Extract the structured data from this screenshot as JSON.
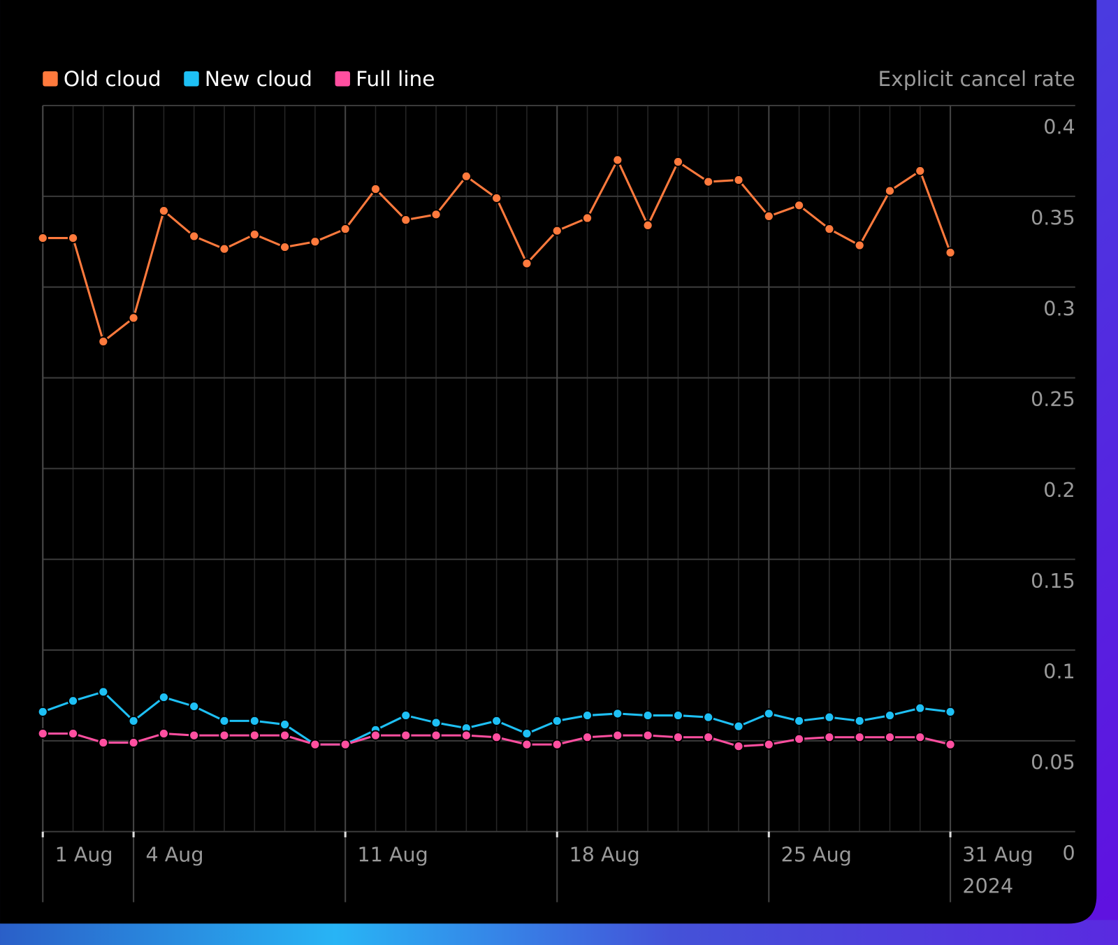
{
  "chart_data": {
    "type": "line",
    "y_axis_label": "Explicit cancel rate",
    "x": [
      "2024-08-01",
      "2024-08-02",
      "2024-08-03",
      "2024-08-04",
      "2024-08-05",
      "2024-08-06",
      "2024-08-07",
      "2024-08-08",
      "2024-08-09",
      "2024-08-10",
      "2024-08-11",
      "2024-08-12",
      "2024-08-13",
      "2024-08-14",
      "2024-08-15",
      "2024-08-16",
      "2024-08-17",
      "2024-08-18",
      "2024-08-19",
      "2024-08-20",
      "2024-08-21",
      "2024-08-22",
      "2024-08-23",
      "2024-08-24",
      "2024-08-25",
      "2024-08-26",
      "2024-08-27",
      "2024-08-28",
      "2024-08-29",
      "2024-08-30",
      "2024-08-31"
    ],
    "xticks": [
      {
        "value": "2024-08-01",
        "label": "1 Aug"
      },
      {
        "value": "2024-08-04",
        "label": "4 Aug"
      },
      {
        "value": "2024-08-11",
        "label": "11 Aug"
      },
      {
        "value": "2024-08-18",
        "label": "18 Aug"
      },
      {
        "value": "2024-08-25",
        "label": "25 Aug"
      },
      {
        "value": "2024-08-31",
        "label": "31 Aug"
      }
    ],
    "year_label": "2024",
    "series": [
      {
        "name": "Old cloud",
        "color": "#ff7a3d",
        "values": [
          0.327,
          0.327,
          0.27,
          0.283,
          0.342,
          0.328,
          0.321,
          0.329,
          0.322,
          0.325,
          0.332,
          0.354,
          0.337,
          0.34,
          0.361,
          0.349,
          0.313,
          0.331,
          0.338,
          0.37,
          0.334,
          0.369,
          0.358,
          0.359,
          0.339,
          0.345,
          0.332,
          0.323,
          0.353,
          0.364,
          0.319
        ]
      },
      {
        "name": "New cloud",
        "color": "#1ec0f5",
        "values": [
          0.066,
          0.072,
          0.077,
          0.061,
          0.074,
          0.069,
          0.061,
          0.061,
          0.059,
          0.048,
          0.048,
          0.056,
          0.064,
          0.06,
          0.057,
          0.061,
          0.054,
          0.061,
          0.064,
          0.065,
          0.064,
          0.064,
          0.063,
          0.058,
          0.065,
          0.061,
          0.063,
          0.061,
          0.064,
          0.068,
          0.066
        ]
      },
      {
        "name": "Full line",
        "color": "#ff4fa0",
        "values": [
          0.054,
          0.054,
          0.049,
          0.049,
          0.054,
          0.053,
          0.053,
          0.053,
          0.053,
          0.048,
          0.048,
          0.053,
          0.053,
          0.053,
          0.053,
          0.052,
          0.048,
          0.048,
          0.052,
          0.053,
          0.053,
          0.052,
          0.052,
          0.047,
          0.048,
          0.051,
          0.052,
          0.052,
          0.052,
          0.052,
          0.048
        ]
      }
    ],
    "ylim": [
      0,
      0.4
    ],
    "yticks": [
      0,
      0.05,
      0.1,
      0.15,
      0.2,
      0.25,
      0.3,
      0.35,
      0.4
    ],
    "grid": true,
    "legend": "top-left"
  }
}
